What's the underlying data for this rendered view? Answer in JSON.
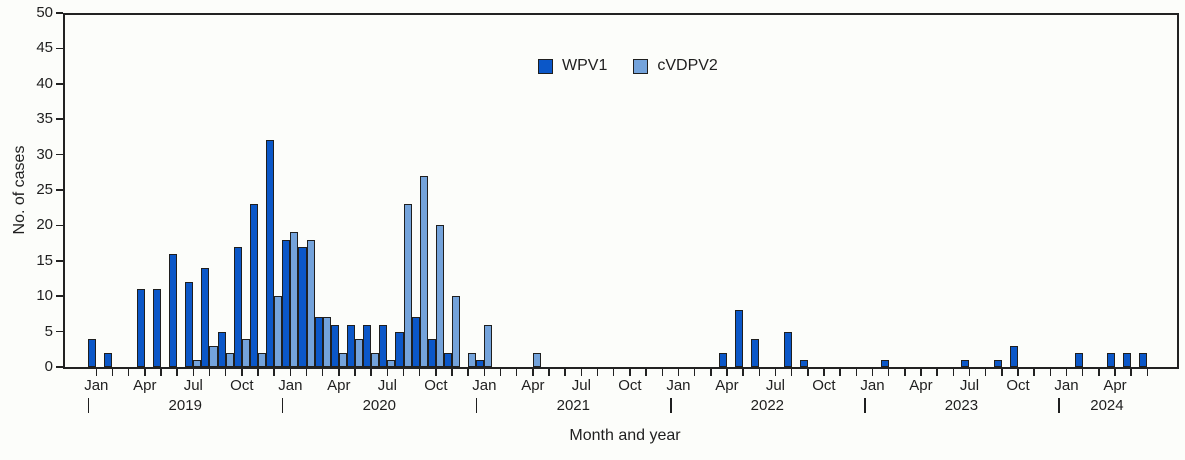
{
  "chart_data": {
    "type": "bar",
    "title": "",
    "ylabel": "No. of cases",
    "xlabel": "Month and year",
    "ylim": [
      0,
      50
    ],
    "y_tick_step": 5,
    "grid": false,
    "legend_position": "top-center",
    "series": [
      {
        "name": "WPV1",
        "color": "#0B57C8"
      },
      {
        "name": "cVDPV2",
        "color": "#74A3DB"
      }
    ],
    "bar_border_color": "#1f1f1f",
    "month_names": [
      "Jan",
      "Feb",
      "Mar",
      "Apr",
      "May",
      "Jun",
      "Jul",
      "Aug",
      "Sep",
      "Oct",
      "Nov",
      "Dec"
    ],
    "labeled_month_indices": [
      0,
      3,
      6,
      9
    ],
    "years": [
      {
        "year": "2019",
        "WPV1": [
          4,
          2,
          0,
          11,
          11,
          16,
          12,
          14,
          5,
          17,
          23,
          32
        ],
        "cVDPV2": [
          0,
          0,
          0,
          0,
          0,
          0,
          1,
          3,
          2,
          4,
          2,
          10
        ]
      },
      {
        "year": "2020",
        "WPV1": [
          18,
          17,
          7,
          6,
          6,
          6,
          6,
          5,
          7,
          4,
          2,
          0
        ],
        "cVDPV2": [
          19,
          18,
          7,
          2,
          4,
          2,
          1,
          23,
          27,
          20,
          10,
          2
        ]
      },
      {
        "year": "2021",
        "WPV1": [
          1,
          0,
          0,
          0,
          0,
          0,
          0,
          0,
          0,
          0,
          0,
          0
        ],
        "cVDPV2": [
          6,
          0,
          0,
          2,
          0,
          0,
          0,
          0,
          0,
          0,
          0,
          0
        ]
      },
      {
        "year": "2022",
        "WPV1": [
          0,
          0,
          0,
          2,
          8,
          4,
          0,
          5,
          1,
          0,
          0,
          0
        ],
        "cVDPV2": [
          0,
          0,
          0,
          0,
          0,
          0,
          0,
          0,
          0,
          0,
          0,
          0
        ]
      },
      {
        "year": "2023",
        "WPV1": [
          0,
          1,
          0,
          0,
          0,
          0,
          1,
          0,
          1,
          3,
          0,
          0
        ],
        "cVDPV2": [
          0,
          0,
          0,
          0,
          0,
          0,
          0,
          0,
          0,
          0,
          0,
          0
        ]
      },
      {
        "year": "2024",
        "WPV1": [
          0,
          2,
          0,
          2,
          2,
          2
        ],
        "cVDPV2": [
          0,
          0,
          0,
          0,
          0,
          0
        ]
      }
    ]
  }
}
